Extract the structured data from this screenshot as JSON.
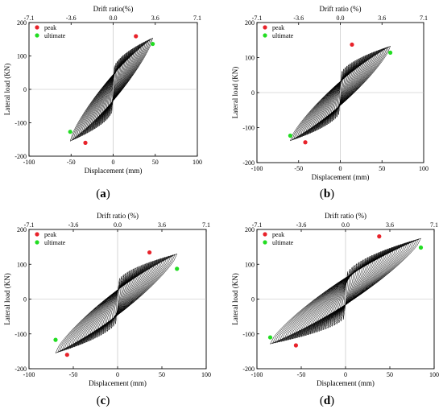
{
  "figure": {
    "captions": [
      "(a)",
      "(b)",
      "(c)",
      "(d)"
    ],
    "caption_letters": [
      "a",
      "b",
      "c",
      "d"
    ]
  },
  "chart_data": [
    {
      "type": "line",
      "panel": "a",
      "xlabel": "Displacement (mm)",
      "ylabel": "Lateral load (KN)",
      "top_label": "Drift ratio(%)",
      "xlim": [
        -100,
        100
      ],
      "ylim": [
        -200,
        200
      ],
      "xticks": [
        -100,
        -50,
        0,
        50,
        100
      ],
      "yticks": [
        -200,
        -100,
        0,
        100,
        200
      ],
      "top_ticks": [
        -7.1,
        -3.6,
        0.0,
        3.6,
        7.1
      ],
      "top_tick_labels": [
        "-7.1",
        "-3.6",
        "0.0",
        "3.6",
        "7.1"
      ],
      "grid": false,
      "legend_position": "top-left",
      "series": [
        {
          "name": "peak",
          "color": "#e8222a",
          "points": [
            [
              27,
              159
            ],
            [
              -33,
              -160
            ]
          ]
        },
        {
          "name": "ultimate",
          "color": "#22dd22",
          "points": [
            [
              47,
              136
            ],
            [
              -51,
              -127
            ]
          ]
        }
      ],
      "hysteresis": {
        "x_pos": 47,
        "x_neg": -51,
        "y_pos": 159,
        "y_neg": -160,
        "loops": 28,
        "stroke": "#000000"
      }
    },
    {
      "type": "line",
      "panel": "b",
      "xlabel": "Displacement (mm)",
      "ylabel": "Lateral load (KN)",
      "top_label": "Drift ratio (%)",
      "xlim": [
        -100,
        100
      ],
      "ylim": [
        -200,
        200
      ],
      "xticks": [
        -100,
        -50,
        0,
        50,
        100
      ],
      "yticks": [
        -200,
        -100,
        0,
        100,
        200
      ],
      "top_ticks": [
        -7.1,
        -3.6,
        0.0,
        3.6,
        7.1
      ],
      "top_tick_labels": [
        "-7.1",
        "-3.6",
        "0.0",
        "3.6",
        "7.1"
      ],
      "grid": false,
      "legend_position": "top-left",
      "series": [
        {
          "name": "peak",
          "color": "#e8222a",
          "points": [
            [
              14,
              137
            ],
            [
              -42,
              -142
            ]
          ]
        },
        {
          "name": "ultimate",
          "color": "#22dd22",
          "points": [
            [
              60,
              114
            ],
            [
              -60,
              -123
            ]
          ]
        }
      ],
      "hysteresis": {
        "x_pos": 60,
        "x_neg": -60,
        "y_pos": 137,
        "y_neg": -142,
        "loops": 30,
        "stroke": "#000000"
      }
    },
    {
      "type": "line",
      "panel": "c",
      "xlabel": "Displacement (mm)",
      "ylabel": "Lateral load (KN)",
      "top_label": "Drift ratio (%)",
      "xlim": [
        -100,
        100
      ],
      "ylim": [
        -200,
        200
      ],
      "xticks": [
        -100,
        -50,
        0,
        50,
        100
      ],
      "yticks": [
        -200,
        -100,
        0,
        100,
        200
      ],
      "top_ticks": [
        -7.1,
        -3.6,
        0.0,
        3.6,
        7.1
      ],
      "top_tick_labels": [
        "-7.1",
        "-3.6",
        "0.0",
        "3.6",
        "7.1"
      ],
      "grid": false,
      "legend_position": "top-left",
      "series": [
        {
          "name": "peak",
          "color": "#e8222a",
          "points": [
            [
              36,
              134
            ],
            [
              -57,
              -160
            ]
          ]
        },
        {
          "name": "ultimate",
          "color": "#22dd22",
          "points": [
            [
              67,
              87
            ],
            [
              -70,
              -117
            ]
          ]
        }
      ],
      "hysteresis": {
        "x_pos": 67,
        "x_neg": -70,
        "y_pos": 134,
        "y_neg": -160,
        "loops": 30,
        "stroke": "#000000"
      }
    },
    {
      "type": "line",
      "panel": "d",
      "xlabel": "Displacement (mm)",
      "ylabel": "Lateral load (KN)",
      "top_label": "Drift ratio (%)",
      "xlim": [
        -100,
        100
      ],
      "ylim": [
        -200,
        200
      ],
      "xticks": [
        -100,
        -50,
        0,
        50,
        100
      ],
      "yticks": [
        -200,
        -100,
        0,
        100,
        200
      ],
      "top_ticks": [
        -7.1,
        -3.6,
        0.0,
        3.6,
        7.1
      ],
      "top_tick_labels": [
        "-7.1",
        "-3.6",
        "0.0",
        "3.6",
        "7.1"
      ],
      "grid": false,
      "legend_position": "top-left",
      "series": [
        {
          "name": "peak",
          "color": "#e8222a",
          "points": [
            [
              38,
              180
            ],
            [
              -56,
              -133
            ]
          ]
        },
        {
          "name": "ultimate",
          "color": "#22dd22",
          "points": [
            [
              85,
              148
            ],
            [
              -85,
              -110
            ]
          ]
        }
      ],
      "hysteresis": {
        "x_pos": 85,
        "x_neg": -85,
        "y_pos": 180,
        "y_neg": -133,
        "loops": 34,
        "stroke": "#000000"
      }
    }
  ]
}
